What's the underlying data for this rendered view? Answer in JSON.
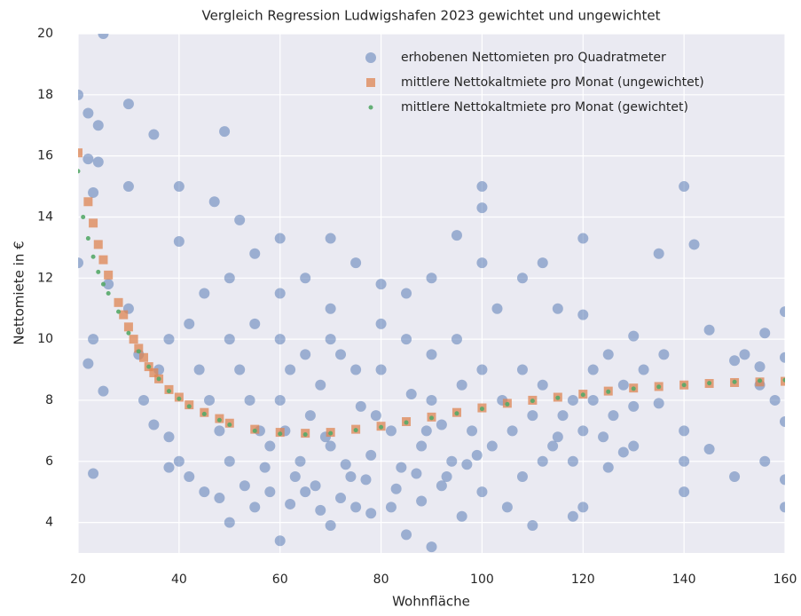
{
  "chart_data": {
    "type": "scatter",
    "title": "Vergleich Regression Ludwigshafen 2023 gewichtet und ungewichtet",
    "x_label": "Wohnfläche",
    "y_label": "Nettomiete in €",
    "xlim": [
      20,
      160
    ],
    "ylim": [
      3,
      20
    ],
    "xticks": [
      20,
      40,
      60,
      80,
      100,
      120,
      140,
      160
    ],
    "yticks": [
      4,
      6,
      8,
      10,
      12,
      14,
      16,
      18,
      20
    ],
    "grid": true,
    "legend": "upper right",
    "series": [
      {
        "name": "erhobenen Nettomieten pro Quadratmeter",
        "color": "#4c72b0",
        "marker": "circle",
        "x": [
          20,
          25,
          22,
          24,
          30,
          35,
          49,
          20,
          22,
          24,
          23,
          30,
          40,
          47,
          52,
          40,
          60,
          70,
          100,
          100,
          95,
          120,
          140,
          142,
          135,
          160,
          156,
          160,
          150,
          155,
          160,
          160,
          160,
          156,
          150,
          145,
          140,
          140,
          140,
          135,
          130,
          130,
          125,
          120,
          118,
          110,
          90,
          85,
          70,
          60,
          50,
          38,
          23,
          25,
          23,
          22,
          26,
          30,
          32,
          33,
          35,
          38,
          40,
          42,
          45,
          48,
          55,
          58,
          62,
          65,
          68,
          72,
          75,
          78,
          82,
          88,
          92,
          96,
          100,
          105,
          108,
          112,
          115,
          118,
          122,
          125,
          128,
          132,
          136,
          145,
          152,
          155,
          158,
          112,
          108,
          115,
          120,
          103,
          100,
          90,
          85,
          80,
          75,
          70,
          65,
          60,
          55,
          50,
          45,
          42,
          38,
          36,
          44,
          46,
          48,
          50,
          52,
          54,
          56,
          58,
          60,
          62,
          64,
          66,
          68,
          70,
          72,
          74,
          76,
          78,
          80,
          82,
          84,
          86,
          88,
          90,
          92,
          94,
          96,
          98,
          100,
          102,
          104,
          106,
          108,
          110,
          112,
          114,
          116,
          118,
          120,
          122,
          124,
          126,
          128,
          130,
          50,
          55,
          60,
          65,
          70,
          75,
          80,
          85,
          90,
          95,
          53,
          57,
          63,
          67,
          73,
          77,
          83,
          87,
          93,
          97,
          61,
          69,
          79,
          89,
          99
        ],
        "values": [
          18,
          20,
          17.4,
          17,
          17.7,
          16.7,
          16.8,
          12.5,
          15.9,
          15.8,
          14.8,
          15,
          15,
          14.5,
          13.9,
          13.2,
          13.3,
          13.3,
          15,
          14.3,
          13.4,
          13.3,
          15,
          13.1,
          12.8,
          10.9,
          10.2,
          9.4,
          9.3,
          9.1,
          7.3,
          4.5,
          5.4,
          6,
          5.5,
          6.4,
          5,
          6,
          7,
          7.9,
          10.1,
          6.5,
          5.8,
          4.5,
          4.2,
          3.9,
          3.2,
          3.6,
          3.9,
          3.4,
          4,
          5.8,
          5.6,
          8.3,
          10,
          9.2,
          11.8,
          11,
          9.5,
          8,
          7.2,
          6.8,
          6,
          5.5,
          5,
          4.8,
          4.5,
          5,
          4.6,
          5,
          4.4,
          4.8,
          4.5,
          4.3,
          4.5,
          4.7,
          5.2,
          4.2,
          5,
          4.5,
          5.5,
          6,
          6.8,
          8,
          9,
          9.5,
          8.5,
          9,
          9.5,
          10.3,
          9.5,
          8.5,
          8,
          12.5,
          12,
          11,
          10.8,
          11,
          12.5,
          12,
          11.5,
          11.8,
          12.5,
          11,
          12,
          11.5,
          12.8,
          12,
          11.5,
          10.5,
          10,
          9,
          9,
          8,
          7,
          6,
          9,
          8,
          7,
          6.5,
          8,
          9,
          6,
          7.5,
          8.5,
          6.5,
          9.5,
          5.5,
          7.8,
          6.2,
          9,
          7,
          5.8,
          8.2,
          6.5,
          9.5,
          7.2,
          6,
          8.5,
          7,
          9,
          6.5,
          8,
          7,
          9,
          7.5,
          8.5,
          6.5,
          7.5,
          6,
          7,
          8,
          6.8,
          7.5,
          6.3,
          7.8,
          10,
          10.5,
          10,
          9.5,
          10,
          9,
          10.5,
          10,
          8,
          10,
          5.2,
          5.8,
          5.5,
          5.2,
          5.9,
          5.4,
          5.1,
          5.6,
          5.5,
          5.9,
          7,
          6.8,
          7.5,
          7,
          6.2
        ]
      },
      {
        "name": "mittlere Nettokaltmiete pro Monat (ungewichtet)",
        "color": "#dd8452",
        "marker": "square",
        "x": [
          20,
          22,
          23,
          24,
          25,
          26,
          28,
          29,
          30,
          31,
          32,
          33,
          34,
          35,
          36,
          38,
          40,
          42,
          45,
          48,
          50,
          55,
          60,
          65,
          70,
          75,
          80,
          85,
          90,
          95,
          100,
          105,
          110,
          115,
          120,
          125,
          130,
          135,
          140,
          145,
          150,
          155,
          160
        ],
        "values": [
          16.1,
          14.5,
          13.8,
          13.1,
          12.6,
          12.1,
          11.2,
          10.8,
          10.4,
          10,
          9.7,
          9.4,
          9.1,
          8.9,
          8.7,
          8.35,
          8.1,
          7.85,
          7.6,
          7.4,
          7.25,
          7.05,
          6.95,
          6.92,
          6.95,
          7.05,
          7.15,
          7.3,
          7.45,
          7.6,
          7.75,
          7.9,
          8,
          8.1,
          8.2,
          8.3,
          8.4,
          8.45,
          8.5,
          8.55,
          8.58,
          8.6,
          8.62
        ]
      },
      {
        "name": "mittlere Nettokaltmiete pro Monat (gewichtet)",
        "color": "#55a868",
        "marker": "dot",
        "x": [
          20,
          21,
          22,
          23,
          24,
          25,
          26,
          28,
          30,
          32,
          34,
          36,
          38,
          40,
          42,
          45,
          48,
          50,
          55,
          60,
          65,
          70,
          75,
          80,
          85,
          90,
          95,
          100,
          105,
          110,
          115,
          120,
          125,
          130,
          135,
          140,
          145,
          150,
          155,
          160
        ],
        "values": [
          15.5,
          14,
          13.3,
          12.7,
          12.2,
          11.8,
          11.5,
          10.9,
          10.2,
          9.6,
          9.1,
          8.7,
          8.3,
          8.05,
          7.8,
          7.55,
          7.35,
          7.2,
          7,
          6.9,
          6.88,
          6.92,
          7.02,
          7.12,
          7.27,
          7.42,
          7.57,
          7.72,
          7.87,
          7.98,
          8.08,
          8.18,
          8.28,
          8.38,
          8.44,
          8.5,
          8.56,
          8.6,
          8.64,
          8.66
        ]
      }
    ]
  }
}
